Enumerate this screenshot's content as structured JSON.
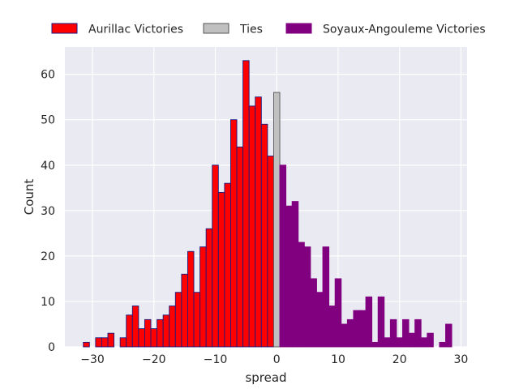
{
  "chart_data": {
    "type": "bar",
    "xlabel": "spread",
    "ylabel": "Count",
    "xlim": [
      -34.5,
      31
    ],
    "ylim": [
      0,
      66
    ],
    "xticks": [
      -30,
      -20,
      -10,
      0,
      10,
      20,
      30
    ],
    "yticks": [
      0,
      10,
      20,
      30,
      40,
      50,
      60
    ],
    "grid": true,
    "legend_placement": "top, outside plot, horizontal",
    "series": [
      {
        "name": "Aurillac Victories",
        "color": "#ff0000",
        "edge_color": "#1a1a80",
        "x": [
          -31,
          -29,
          -28,
          -27,
          -25,
          -24,
          -23,
          -22,
          -21,
          -20,
          -19,
          -18,
          -17,
          -16,
          -15,
          -14,
          -13,
          -12,
          -11,
          -10,
          -9,
          -8,
          -7,
          -6,
          -5,
          -4,
          -3,
          -2,
          -1
        ],
        "values": [
          1,
          2,
          2,
          3,
          2,
          7,
          9,
          4,
          6,
          4,
          6,
          7,
          9,
          12,
          16,
          21,
          12,
          22,
          26,
          40,
          34,
          36,
          50,
          44,
          63,
          53,
          55,
          49,
          42
        ]
      },
      {
        "name": "Ties",
        "color": "#c0c0c0",
        "edge_color": "#555555",
        "x": [
          0
        ],
        "values": [
          56
        ]
      },
      {
        "name": "Soyaux-Angouleme Victories",
        "color": "#800080",
        "edge_color": "#800080",
        "x": [
          1,
          2,
          3,
          4,
          5,
          6,
          7,
          8,
          9,
          10,
          11,
          12,
          13,
          14,
          15,
          16,
          17,
          18,
          19,
          20,
          21,
          22,
          23,
          24,
          25,
          27,
          28
        ],
        "values": [
          40,
          31,
          32,
          23,
          22,
          15,
          12,
          22,
          9,
          15,
          5,
          6,
          8,
          8,
          11,
          1,
          11,
          2,
          6,
          2,
          6,
          3,
          6,
          2,
          3,
          1,
          5
        ]
      }
    ]
  }
}
